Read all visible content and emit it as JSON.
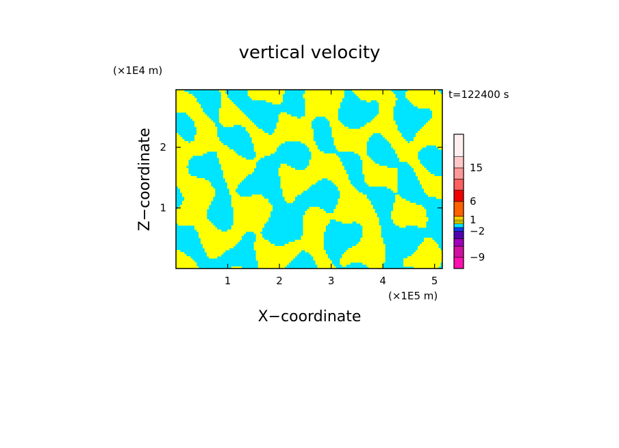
{
  "chart_data": {
    "type": "heatmap",
    "title": "vertical velocity",
    "xlabel": "X−coordinate",
    "ylabel": "Z−coordinate",
    "x_unit": "(×1E5 m)",
    "y_unit": "(×1E4 m)",
    "time_label": "t=122400 s",
    "xlim": [
      0,
      5.15
    ],
    "ylim": [
      0,
      2.95
    ],
    "x_ticks": [
      {
        "value": 1,
        "label": "1"
      },
      {
        "value": 2,
        "label": "2"
      },
      {
        "value": 3,
        "label": "3"
      },
      {
        "value": 4,
        "label": "4"
      },
      {
        "value": 5,
        "label": "5"
      }
    ],
    "y_ticks": [
      {
        "value": 1,
        "label": "1"
      },
      {
        "value": 2,
        "label": "2"
      }
    ],
    "field_colors": {
      "positive": "#ffff00",
      "negative": "#00e5ff"
    },
    "colorbar": {
      "range": [
        -12,
        24
      ],
      "levels": [
        {
          "from": -12,
          "to": -9,
          "color": "#ff10b0"
        },
        {
          "from": -9,
          "to": -6,
          "color": "#d010a0"
        },
        {
          "from": -6,
          "to": -4,
          "color": "#a000b8"
        },
        {
          "from": -4,
          "to": -2,
          "color": "#5000b0"
        },
        {
          "from": -2,
          "to": -1,
          "color": "#1040ff"
        },
        {
          "from": -1,
          "to": 0,
          "color": "#00e5ff"
        },
        {
          "from": 0,
          "to": 0.5,
          "color": "#ffff00"
        },
        {
          "from": 0.5,
          "to": 1,
          "color": "#fff000"
        },
        {
          "from": 1,
          "to": 2,
          "color": "#ffd200"
        },
        {
          "from": 2,
          "to": 6,
          "color": "#ff6000"
        },
        {
          "from": 6,
          "to": 9,
          "color": "#f00000"
        },
        {
          "from": 9,
          "to": 12,
          "color": "#ff6060"
        },
        {
          "from": 12,
          "to": 15,
          "color": "#ff9898"
        },
        {
          "from": 15,
          "to": 18,
          "color": "#ffc8c8"
        },
        {
          "from": 18,
          "to": 24,
          "color": "#fff0f0"
        }
      ],
      "labels": [
        {
          "value": 15,
          "label": "15"
        },
        {
          "value": 6,
          "label": "6"
        },
        {
          "value": 1,
          "label": "1"
        },
        {
          "value": -2,
          "label": "−2"
        },
        {
          "value": -9,
          "label": "−9"
        }
      ]
    }
  }
}
